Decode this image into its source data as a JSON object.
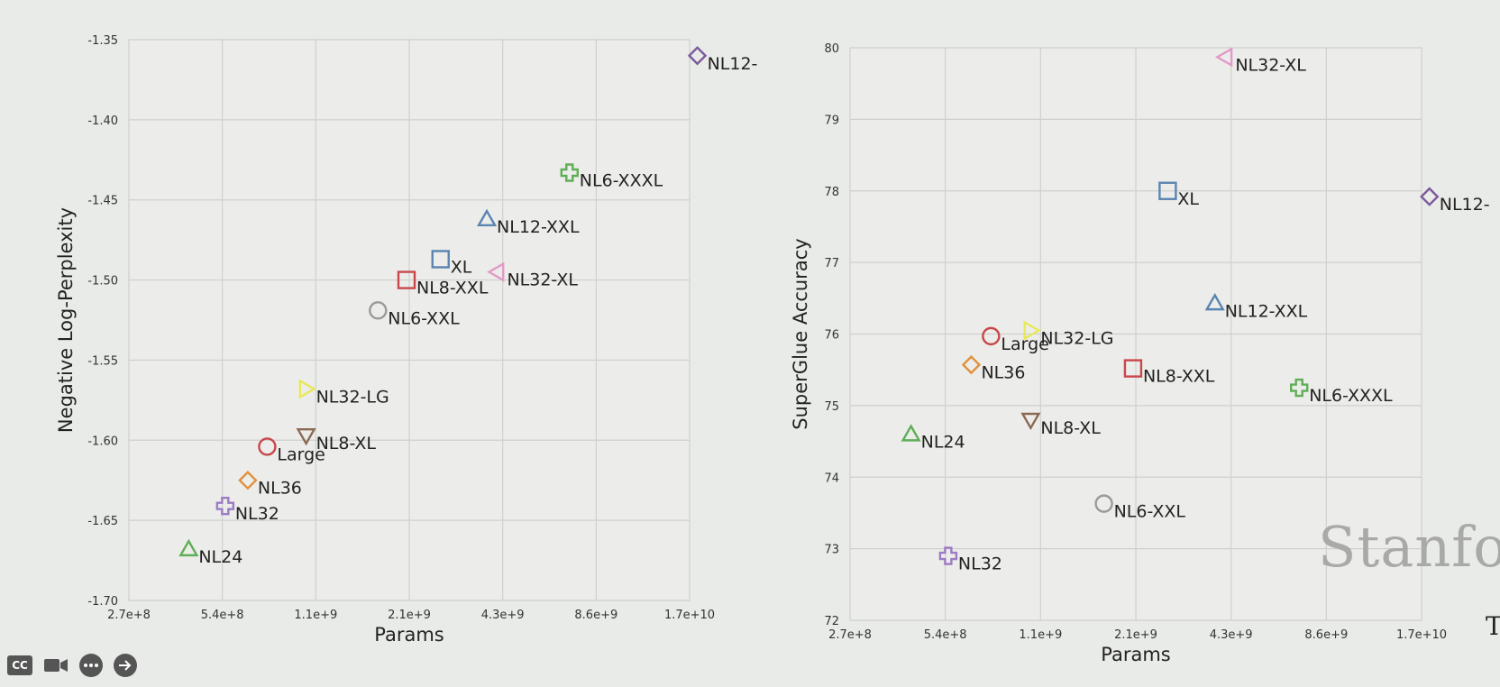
{
  "chart_data": [
    {
      "type": "scatter",
      "title": "",
      "xlabel": "Params",
      "ylabel": "Negative Log-Perplexity",
      "xscale": "log",
      "xticks": [
        "2.7e+8",
        "5.4e+8",
        "1.1e+9",
        "2.1e+9",
        "4.3e+9",
        "8.6e+9",
        "1.7e+10"
      ],
      "yticks": [
        "-1.35",
        "-1.40",
        "-1.45",
        "-1.50",
        "-1.55",
        "-1.60",
        "-1.65",
        "-1.70"
      ],
      "ylim": [
        -1.7,
        -1.35
      ],
      "grid": true,
      "points": [
        {
          "label": "NL12-",
          "x": 18000000000,
          "y": -1.36,
          "marker": "diamond",
          "color": "#7b5a9b"
        },
        {
          "label": "NL6-XXXL",
          "x": 7000000000,
          "y": -1.433,
          "marker": "cross",
          "color": "#5fae57"
        },
        {
          "label": "NL12-XXL",
          "x": 3800000000,
          "y": -1.462,
          "marker": "triangle-up",
          "color": "#5b84b1"
        },
        {
          "label": "XL",
          "x": 2700000000,
          "y": -1.487,
          "marker": "square",
          "color": "#5b84b1"
        },
        {
          "label": "NL32-XL",
          "x": 4100000000,
          "y": -1.495,
          "marker": "triangle-left",
          "color": "#e39ac8"
        },
        {
          "label": "NL8-XXL",
          "x": 2100000000,
          "y": -1.5,
          "marker": "square",
          "color": "#c9474b"
        },
        {
          "label": "NL6-XXL",
          "x": 1700000000,
          "y": -1.519,
          "marker": "circle",
          "color": "#9a9a9a"
        },
        {
          "label": "NL32-LG",
          "x": 1000000000,
          "y": -1.568,
          "marker": "triangle-right",
          "color": "#e8e85a"
        },
        {
          "label": "NL8-XL",
          "x": 1000000000,
          "y": -1.597,
          "marker": "triangle-down",
          "color": "#8b6a54"
        },
        {
          "label": "Large",
          "x": 750000000,
          "y": -1.604,
          "marker": "circle",
          "color": "#c9474b"
        },
        {
          "label": "NL36",
          "x": 650000000,
          "y": -1.625,
          "marker": "diamond",
          "color": "#e0913e"
        },
        {
          "label": "NL32",
          "x": 550000000,
          "y": -1.641,
          "marker": "cross",
          "color": "#9b7bc4"
        },
        {
          "label": "NL24",
          "x": 420000000,
          "y": -1.668,
          "marker": "triangle-up",
          "color": "#5fae57"
        }
      ]
    },
    {
      "type": "scatter",
      "title": "",
      "xlabel": "Params",
      "ylabel": "SuperGlue Accuracy",
      "xscale": "log",
      "xticks": [
        "2.7e+8",
        "5.4e+8",
        "1.1e+9",
        "2.1e+9",
        "4.3e+9",
        "8.6e+9",
        "1.7e+10"
      ],
      "yticks": [
        "80",
        "79",
        "78",
        "77",
        "76",
        "75",
        "74",
        "73",
        "72"
      ],
      "ylim": [
        72,
        80
      ],
      "grid": true,
      "points": [
        {
          "label": "NL32-XL",
          "x": 4100000000,
          "y": 79.87,
          "marker": "triangle-left",
          "color": "#e39ac8"
        },
        {
          "label": "XL",
          "x": 2700000000,
          "y": 78.0,
          "marker": "square",
          "color": "#5b84b1"
        },
        {
          "label": "NL12-",
          "x": 18000000000,
          "y": 77.92,
          "marker": "diamond",
          "color": "#7b5a9b"
        },
        {
          "label": "NL12-XXL",
          "x": 3800000000,
          "y": 76.43,
          "marker": "triangle-up",
          "color": "#5b84b1"
        },
        {
          "label": "NL32-LG",
          "x": 1000000000,
          "y": 76.05,
          "marker": "triangle-right",
          "color": "#e8e85a"
        },
        {
          "label": "Large",
          "x": 750000000,
          "y": 75.97,
          "marker": "circle",
          "color": "#c9474b"
        },
        {
          "label": "NL36",
          "x": 650000000,
          "y": 75.57,
          "marker": "diamond",
          "color": "#e0913e"
        },
        {
          "label": "NL8-XXL",
          "x": 2100000000,
          "y": 75.52,
          "marker": "square",
          "color": "#c9474b"
        },
        {
          "label": "NL6-XXXL",
          "x": 7000000000,
          "y": 75.25,
          "marker": "cross",
          "color": "#5fae57"
        },
        {
          "label": "NL8-XL",
          "x": 1000000000,
          "y": 74.8,
          "marker": "triangle-down",
          "color": "#8b6a54"
        },
        {
          "label": "NL24",
          "x": 420000000,
          "y": 74.6,
          "marker": "triangle-up",
          "color": "#5fae57"
        },
        {
          "label": "NL6-XXL",
          "x": 1700000000,
          "y": 73.63,
          "marker": "circle",
          "color": "#9a9a9a"
        },
        {
          "label": "NL32",
          "x": 550000000,
          "y": 72.9,
          "marker": "cross",
          "color": "#9b7bc4"
        }
      ]
    }
  ],
  "overlay": {
    "watermark": "Stanfo",
    "edge_letter": "T",
    "controls": [
      {
        "label": "CC",
        "icon": "cc-icon"
      },
      {
        "label": "",
        "icon": "camera-icon"
      },
      {
        "label": "",
        "icon": "more-icon"
      },
      {
        "label": "",
        "icon": "arrow-right-icon"
      }
    ]
  }
}
